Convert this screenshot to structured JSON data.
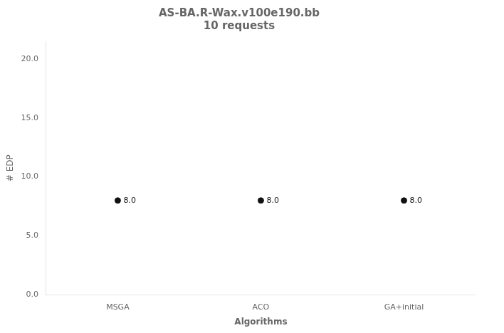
{
  "chart_data": {
    "type": "scatter",
    "title": "AS-BA.R-Wax.v100e190.bb",
    "subtitle": "10 requests",
    "xlabel": "Algorithms",
    "ylabel": "# EDP",
    "categories": [
      "MSGA",
      "ACO",
      "GA+initial"
    ],
    "values": [
      8.0,
      8.0,
      8.0
    ],
    "value_labels": [
      "8.0",
      "8.0",
      "8.0"
    ],
    "data_labels": true,
    "color": "#111111",
    "marker": "circle",
    "ylim": [
      0.0,
      21.5
    ],
    "yticks": [
      {
        "value": 0,
        "label": "0.0"
      },
      {
        "value": 5,
        "label": "5.0"
      },
      {
        "value": 10,
        "label": "10.0"
      },
      {
        "value": 15,
        "label": "15.0"
      },
      {
        "value": 20,
        "label": "20.0"
      }
    ],
    "grid": false
  }
}
